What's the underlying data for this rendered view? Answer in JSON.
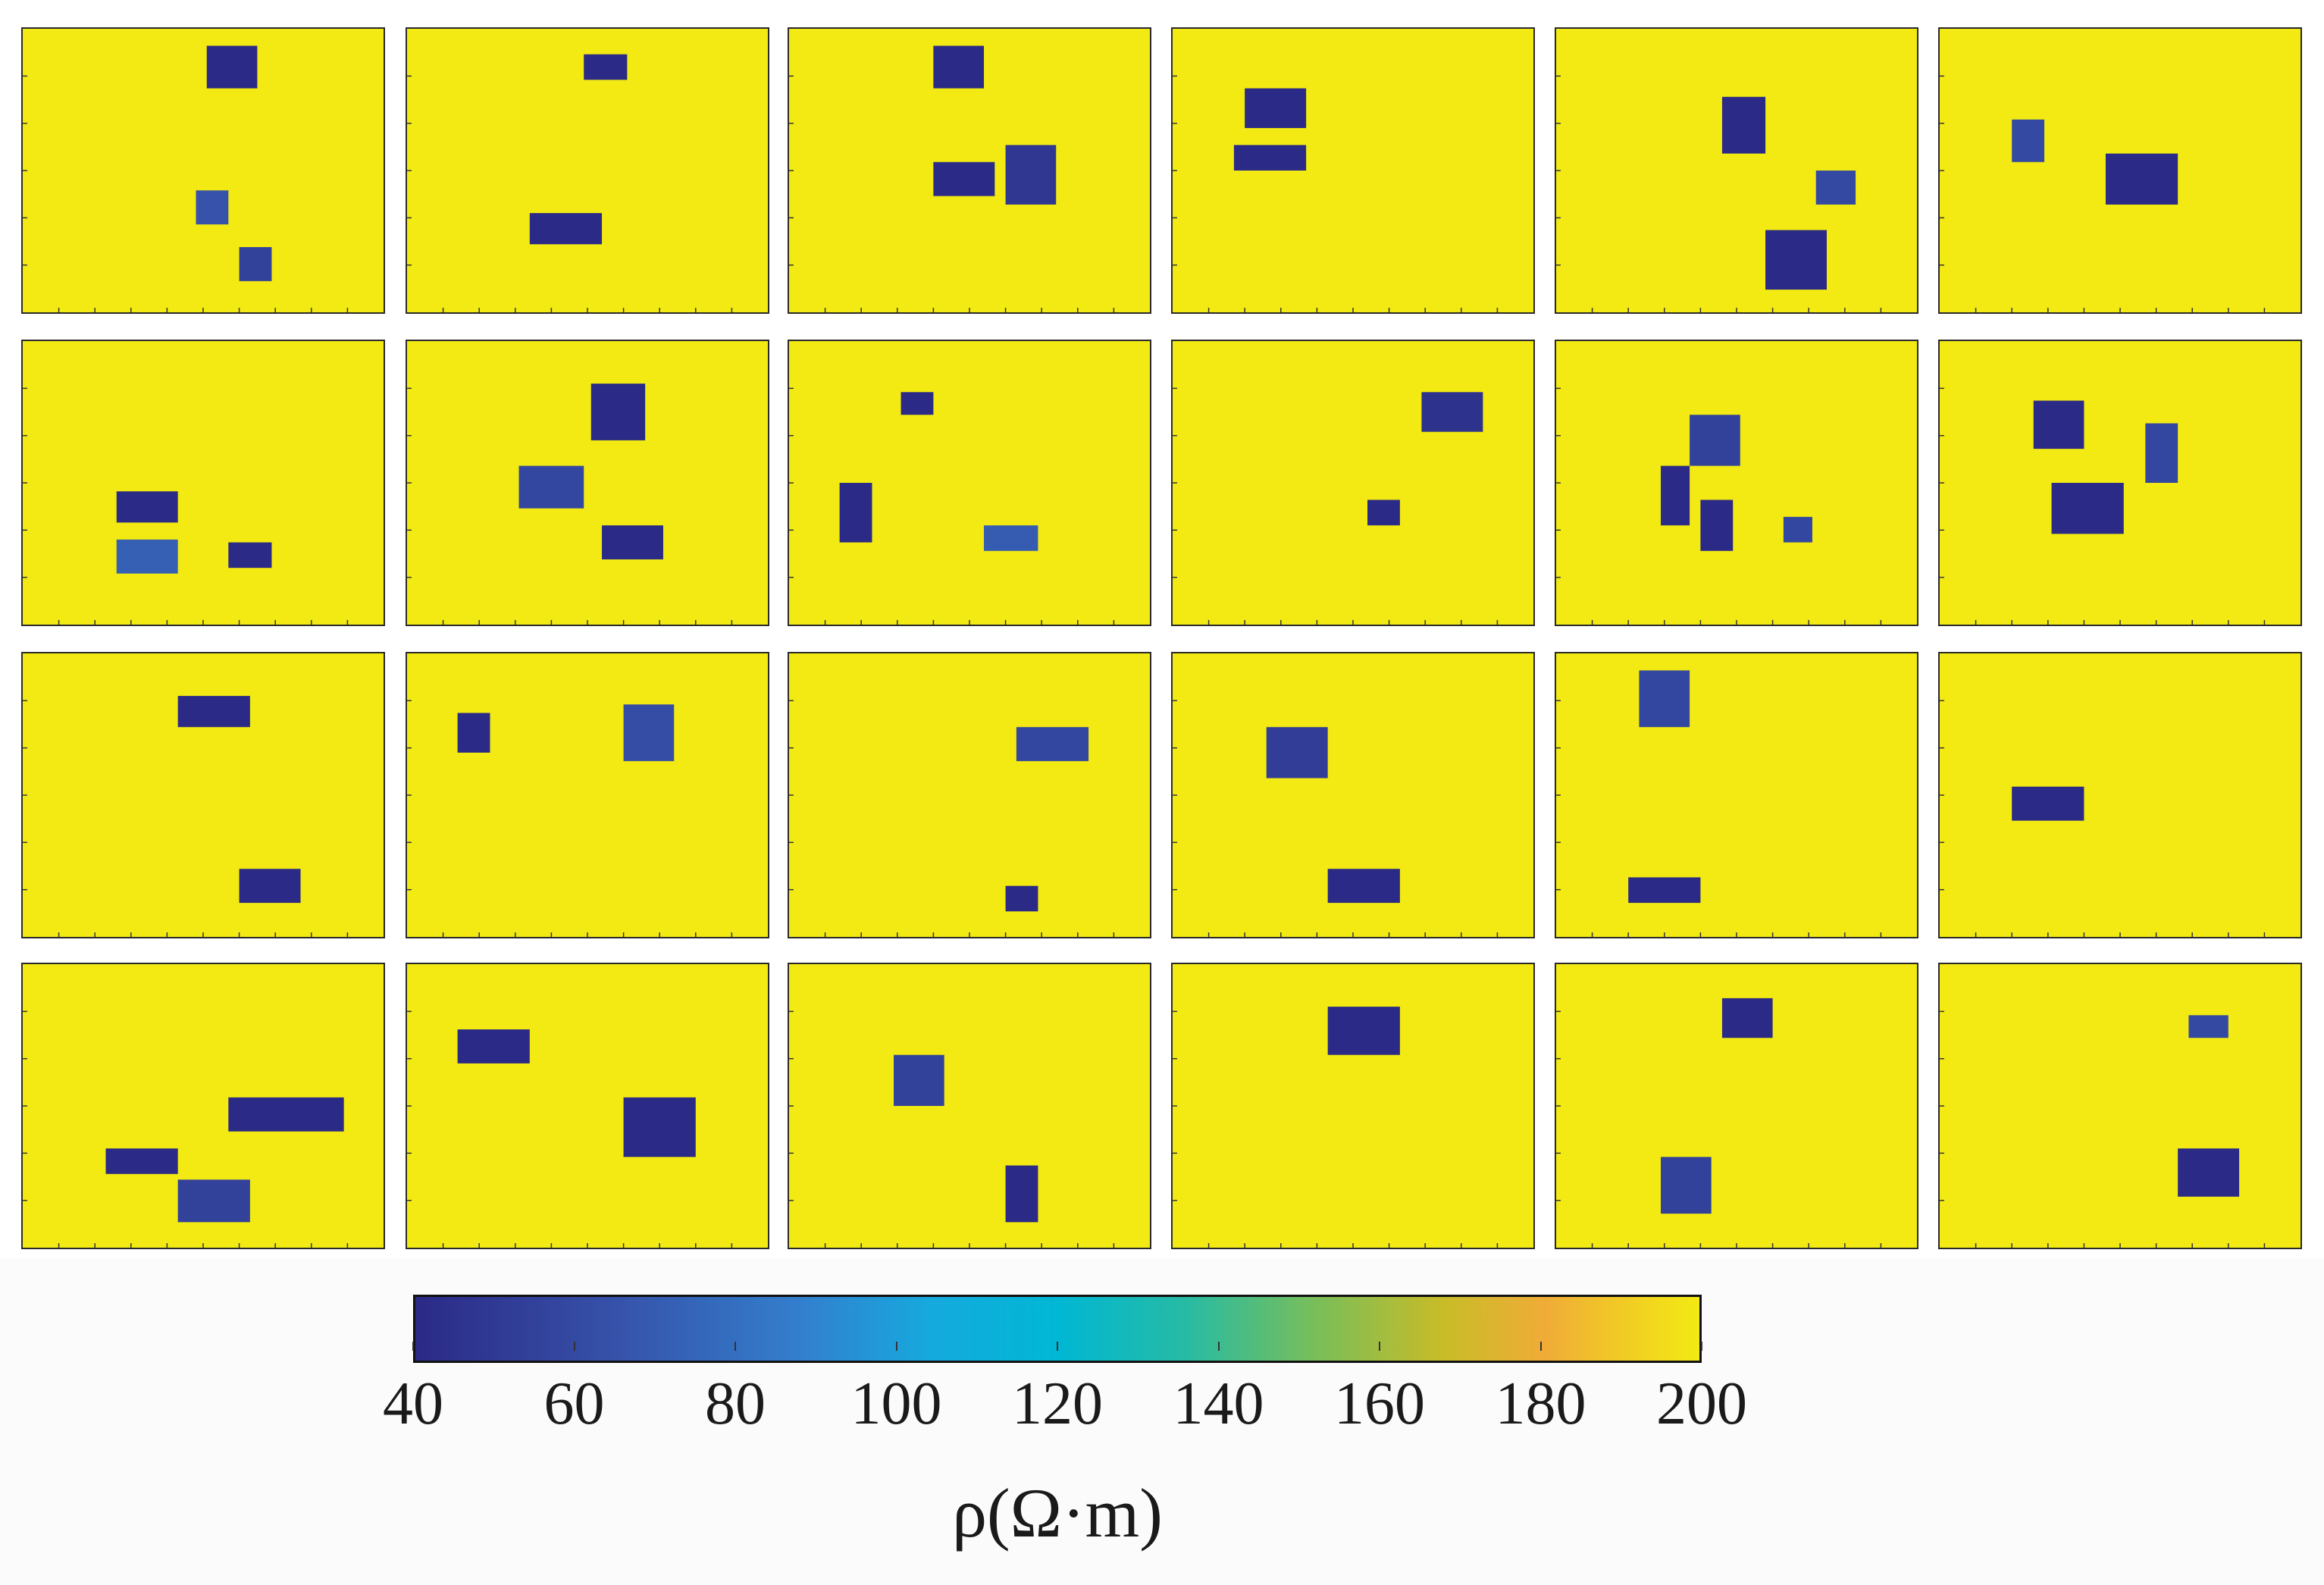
{
  "chart_data": {
    "type": "heatmap",
    "description_of_grid": "4 rows x 6 columns of resistivity model panels; background resistivity 200 ohm-m with rectangular low-resistivity anomalies",
    "background_value": 200,
    "colorbar": {
      "colormap": "parula",
      "range": [
        40,
        200
      ],
      "ticks": [
        "40",
        "60",
        "80",
        "100",
        "120",
        "140",
        "160",
        "180",
        "200"
      ],
      "label": "ρ(Ω·m)"
    },
    "panels": [
      {
        "row": 1,
        "col": 1,
        "anomalies": [
          {
            "x0": 0.51,
            "y0": 0.06,
            "x1": 0.65,
            "y1": 0.21,
            "value": 40
          },
          {
            "x0": 0.48,
            "y0": 0.57,
            "x1": 0.57,
            "y1": 0.69,
            "value": 65
          },
          {
            "x0": 0.6,
            "y0": 0.77,
            "x1": 0.69,
            "y1": 0.89,
            "value": 55
          }
        ]
      },
      {
        "row": 1,
        "col": 2,
        "anomalies": [
          {
            "x0": 0.49,
            "y0": 0.09,
            "x1": 0.61,
            "y1": 0.18,
            "value": 40
          },
          {
            "x0": 0.34,
            "y0": 0.65,
            "x1": 0.54,
            "y1": 0.76,
            "value": 40
          }
        ]
      },
      {
        "row": 1,
        "col": 3,
        "anomalies": [
          {
            "x0": 0.4,
            "y0": 0.06,
            "x1": 0.54,
            "y1": 0.21,
            "value": 40
          },
          {
            "x0": 0.4,
            "y0": 0.47,
            "x1": 0.57,
            "y1": 0.59,
            "value": 40
          },
          {
            "x0": 0.6,
            "y0": 0.41,
            "x1": 0.74,
            "y1": 0.62,
            "value": 48
          }
        ]
      },
      {
        "row": 1,
        "col": 4,
        "anomalies": [
          {
            "x0": 0.2,
            "y0": 0.21,
            "x1": 0.37,
            "y1": 0.35,
            "value": 40
          },
          {
            "x0": 0.17,
            "y0": 0.41,
            "x1": 0.37,
            "y1": 0.5,
            "value": 40
          }
        ]
      },
      {
        "row": 1,
        "col": 5,
        "anomalies": [
          {
            "x0": 0.46,
            "y0": 0.24,
            "x1": 0.58,
            "y1": 0.44,
            "value": 40
          },
          {
            "x0": 0.72,
            "y0": 0.5,
            "x1": 0.83,
            "y1": 0.62,
            "value": 60
          },
          {
            "x0": 0.58,
            "y0": 0.71,
            "x1": 0.75,
            "y1": 0.92,
            "value": 40
          }
        ]
      },
      {
        "row": 1,
        "col": 6,
        "anomalies": [
          {
            "x0": 0.2,
            "y0": 0.32,
            "x1": 0.29,
            "y1": 0.47,
            "value": 60
          },
          {
            "x0": 0.46,
            "y0": 0.44,
            "x1": 0.66,
            "y1": 0.62,
            "value": 40
          }
        ]
      },
      {
        "row": 2,
        "col": 1,
        "anomalies": [
          {
            "x0": 0.26,
            "y0": 0.53,
            "x1": 0.43,
            "y1": 0.64,
            "value": 40
          },
          {
            "x0": 0.26,
            "y0": 0.7,
            "x1": 0.43,
            "y1": 0.82,
            "value": 72
          },
          {
            "x0": 0.57,
            "y0": 0.71,
            "x1": 0.69,
            "y1": 0.8,
            "value": 40
          }
        ]
      },
      {
        "row": 2,
        "col": 2,
        "anomalies": [
          {
            "x0": 0.51,
            "y0": 0.15,
            "x1": 0.66,
            "y1": 0.35,
            "value": 40
          },
          {
            "x0": 0.31,
            "y0": 0.44,
            "x1": 0.49,
            "y1": 0.59,
            "value": 58
          },
          {
            "x0": 0.54,
            "y0": 0.65,
            "x1": 0.71,
            "y1": 0.77,
            "value": 40
          }
        ]
      },
      {
        "row": 2,
        "col": 3,
        "anomalies": [
          {
            "x0": 0.31,
            "y0": 0.18,
            "x1": 0.4,
            "y1": 0.26,
            "value": 40
          },
          {
            "x0": 0.14,
            "y0": 0.5,
            "x1": 0.23,
            "y1": 0.71,
            "value": 40
          },
          {
            "x0": 0.54,
            "y0": 0.65,
            "x1": 0.69,
            "y1": 0.74,
            "value": 70
          }
        ]
      },
      {
        "row": 2,
        "col": 4,
        "anomalies": [
          {
            "x0": 0.69,
            "y0": 0.18,
            "x1": 0.86,
            "y1": 0.32,
            "value": 45
          },
          {
            "x0": 0.54,
            "y0": 0.56,
            "x1": 0.63,
            "y1": 0.65,
            "value": 40
          }
        ]
      },
      {
        "row": 2,
        "col": 5,
        "anomalies": [
          {
            "x0": 0.37,
            "y0": 0.26,
            "x1": 0.51,
            "y1": 0.44,
            "value": 55
          },
          {
            "x0": 0.29,
            "y0": 0.44,
            "x1": 0.37,
            "y1": 0.65,
            "value": 40
          },
          {
            "x0": 0.4,
            "y0": 0.56,
            "x1": 0.49,
            "y1": 0.74,
            "value": 40
          },
          {
            "x0": 0.63,
            "y0": 0.62,
            "x1": 0.71,
            "y1": 0.71,
            "value": 58
          }
        ]
      },
      {
        "row": 2,
        "col": 6,
        "anomalies": [
          {
            "x0": 0.26,
            "y0": 0.21,
            "x1": 0.4,
            "y1": 0.38,
            "value": 40
          },
          {
            "x0": 0.57,
            "y0": 0.29,
            "x1": 0.66,
            "y1": 0.5,
            "value": 58
          },
          {
            "x0": 0.31,
            "y0": 0.5,
            "x1": 0.51,
            "y1": 0.68,
            "value": 40
          }
        ]
      },
      {
        "row": 3,
        "col": 1,
        "anomalies": [
          {
            "x0": 0.43,
            "y0": 0.15,
            "x1": 0.63,
            "y1": 0.26,
            "value": 40
          },
          {
            "x0": 0.6,
            "y0": 0.76,
            "x1": 0.77,
            "y1": 0.88,
            "value": 40
          }
        ]
      },
      {
        "row": 3,
        "col": 2,
        "anomalies": [
          {
            "x0": 0.14,
            "y0": 0.21,
            "x1": 0.23,
            "y1": 0.35,
            "value": 40
          },
          {
            "x0": 0.6,
            "y0": 0.18,
            "x1": 0.74,
            "y1": 0.38,
            "value": 62
          }
        ]
      },
      {
        "row": 3,
        "col": 3,
        "anomalies": [
          {
            "x0": 0.63,
            "y0": 0.26,
            "x1": 0.83,
            "y1": 0.38,
            "value": 58
          },
          {
            "x0": 0.6,
            "y0": 0.82,
            "x1": 0.69,
            "y1": 0.91,
            "value": 40
          }
        ]
      },
      {
        "row": 3,
        "col": 4,
        "anomalies": [
          {
            "x0": 0.26,
            "y0": 0.26,
            "x1": 0.43,
            "y1": 0.44,
            "value": 52
          },
          {
            "x0": 0.43,
            "y0": 0.76,
            "x1": 0.63,
            "y1": 0.88,
            "value": 40
          }
        ]
      },
      {
        "row": 3,
        "col": 5,
        "anomalies": [
          {
            "x0": 0.23,
            "y0": 0.06,
            "x1": 0.37,
            "y1": 0.26,
            "value": 58
          },
          {
            "x0": 0.2,
            "y0": 0.79,
            "x1": 0.4,
            "y1": 0.88,
            "value": 40
          }
        ]
      },
      {
        "row": 3,
        "col": 6,
        "anomalies": [
          {
            "x0": 0.2,
            "y0": 0.47,
            "x1": 0.4,
            "y1": 0.59,
            "value": 40
          }
        ]
      },
      {
        "row": 4,
        "col": 1,
        "anomalies": [
          {
            "x0": 0.57,
            "y0": 0.47,
            "x1": 0.89,
            "y1": 0.59,
            "value": 40
          },
          {
            "x0": 0.23,
            "y0": 0.65,
            "x1": 0.43,
            "y1": 0.74,
            "value": 40
          },
          {
            "x0": 0.43,
            "y0": 0.76,
            "x1": 0.63,
            "y1": 0.91,
            "value": 55
          }
        ]
      },
      {
        "row": 4,
        "col": 2,
        "anomalies": [
          {
            "x0": 0.14,
            "y0": 0.23,
            "x1": 0.34,
            "y1": 0.35,
            "value": 40
          },
          {
            "x0": 0.6,
            "y0": 0.47,
            "x1": 0.8,
            "y1": 0.68,
            "value": 40
          }
        ]
      },
      {
        "row": 4,
        "col": 3,
        "anomalies": [
          {
            "x0": 0.29,
            "y0": 0.32,
            "x1": 0.43,
            "y1": 0.5,
            "value": 55
          },
          {
            "x0": 0.6,
            "y0": 0.71,
            "x1": 0.69,
            "y1": 0.91,
            "value": 40
          }
        ]
      },
      {
        "row": 4,
        "col": 4,
        "anomalies": [
          {
            "x0": 0.43,
            "y0": 0.15,
            "x1": 0.63,
            "y1": 0.32,
            "value": 40
          }
        ]
      },
      {
        "row": 4,
        "col": 5,
        "anomalies": [
          {
            "x0": 0.46,
            "y0": 0.12,
            "x1": 0.6,
            "y1": 0.26,
            "value": 40
          },
          {
            "x0": 0.29,
            "y0": 0.68,
            "x1": 0.43,
            "y1": 0.88,
            "value": 55
          }
        ]
      },
      {
        "row": 4,
        "col": 6,
        "anomalies": [
          {
            "x0": 0.69,
            "y0": 0.18,
            "x1": 0.8,
            "y1": 0.26,
            "value": 60
          },
          {
            "x0": 0.66,
            "y0": 0.65,
            "x1": 0.83,
            "y1": 0.82,
            "value": 40
          }
        ]
      }
    ]
  }
}
